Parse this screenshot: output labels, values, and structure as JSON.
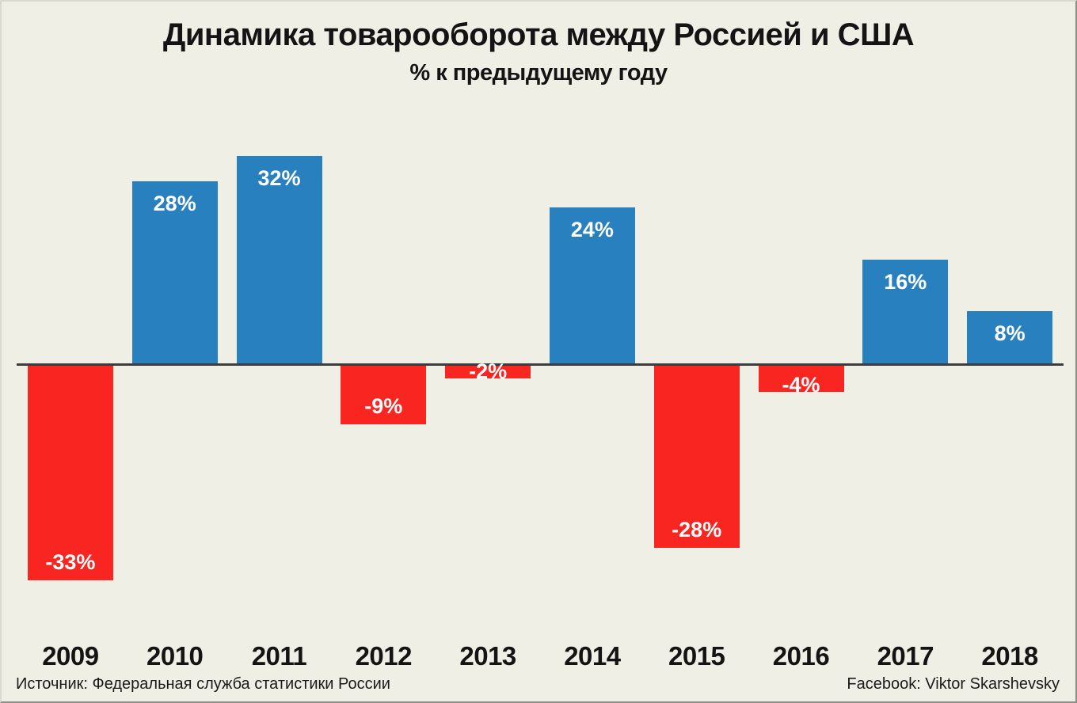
{
  "title": "Динамика товарооборота между Россией и США",
  "subtitle": "% к предыдущему году",
  "footer": {
    "source": "Источник: Федеральная служба статистики России",
    "credit": "Facebook: Viktor Skarshevsky"
  },
  "chart_data": {
    "type": "bar",
    "title": "Динамика товарооборота между Россией и США",
    "subtitle": "% к предыдущему году",
    "categories": [
      "2009",
      "2010",
      "2011",
      "2012",
      "2013",
      "2014",
      "2015",
      "2016",
      "2017",
      "2018"
    ],
    "values": [
      -33,
      28,
      32,
      -9,
      -2,
      24,
      -28,
      -4,
      16,
      8
    ],
    "labels": [
      "-33%",
      "28%",
      "32%",
      "-9%",
      "-2%",
      "24%",
      "-28%",
      "-4%",
      "16%",
      "8%"
    ],
    "unit": "%",
    "ylim": [
      -36,
      34
    ],
    "grid": false,
    "legend": null,
    "value_labels_position": "inside-end",
    "colors": {
      "positive": "#2880be",
      "negative": "#f92521",
      "axis_line": "#3c3c3c",
      "bar_label": "#ffffff",
      "background": "#f0efe6",
      "text": "#141414"
    }
  }
}
